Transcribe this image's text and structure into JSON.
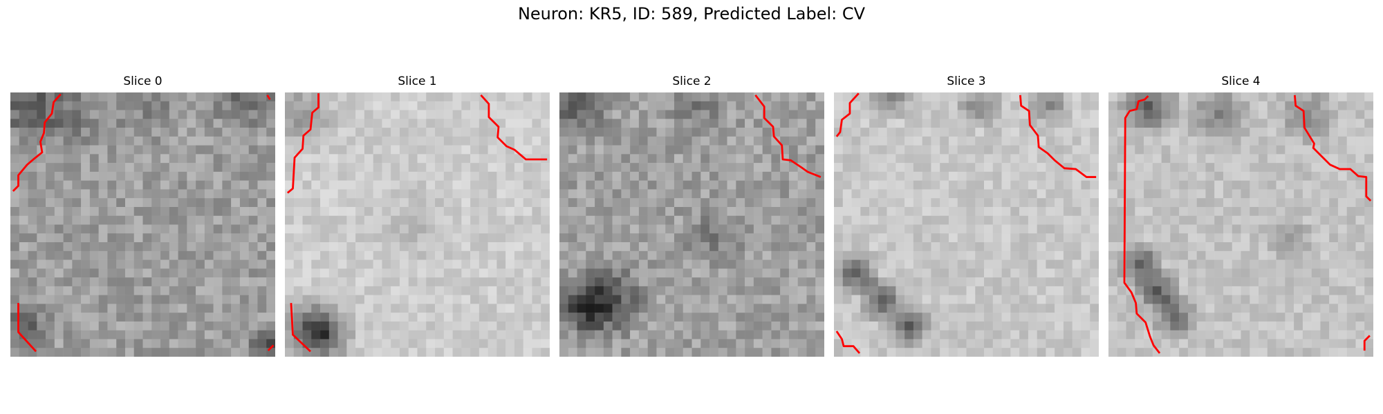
{
  "figure": {
    "title": "Neuron: KR5, ID: 589, Predicted Label: CV"
  },
  "panels": [
    {
      "title": "Slice 0"
    },
    {
      "title": "Slice 1"
    },
    {
      "title": "Slice 2"
    },
    {
      "title": "Slice 3"
    },
    {
      "title": "Slice 4"
    }
  ],
  "colors": {
    "contour": "#ff0000",
    "dark_tissue": "#111111",
    "light_tissue": "#eeeeee"
  }
}
